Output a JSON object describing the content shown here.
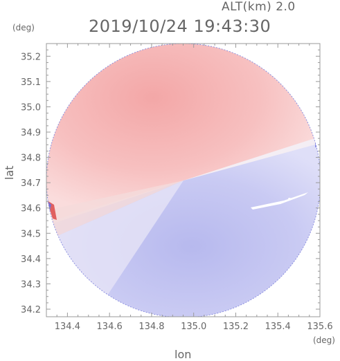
{
  "header": {
    "altitude": "ALT(km) 2.0",
    "timestamp": "2019/10/24 19:43:30"
  },
  "axes": {
    "x_label": "lon",
    "y_label": "lat",
    "x_unit": "(deg)",
    "y_unit": "(deg)",
    "x_ticks": [
      "134.4",
      "134.6",
      "134.8",
      "135.0",
      "135.2",
      "135.4",
      "135.6"
    ],
    "y_ticks": [
      "35.2",
      "35.1",
      "35.0",
      "34.9",
      "34.8",
      "34.7",
      "34.6",
      "34.5",
      "34.4",
      "34.3",
      "34.2"
    ]
  },
  "map": {
    "type": "doppler-velocity-ppi",
    "radar_center": {
      "lon": 134.94,
      "lat": 34.7
    },
    "x_range": [
      134.3,
      135.6
    ],
    "y_range": [
      34.17,
      35.25
    ],
    "colors": {
      "positive": "#f6b6b6",
      "negative": "#c2c4f2",
      "neutral": "#f2eef4"
    }
  }
}
